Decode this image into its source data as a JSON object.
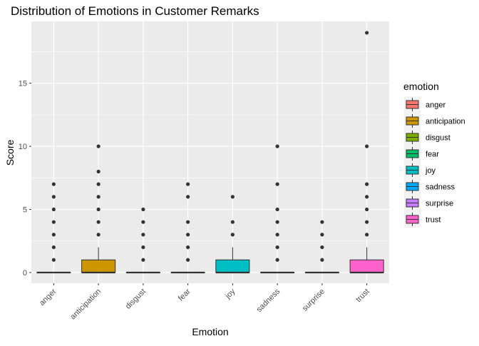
{
  "chart_data": {
    "type": "boxplot",
    "title": "Distribution of Emotions in Customer Remarks",
    "xlabel": "Emotion",
    "ylabel": "Score",
    "ylim": [
      -0.85,
      19.9
    ],
    "yticks": [
      0,
      5,
      10,
      15
    ],
    "grid": true,
    "legend": {
      "title": "emotion",
      "position": "right"
    },
    "categories": [
      "anger",
      "anticipation",
      "disgust",
      "fear",
      "joy",
      "sadness",
      "surprise",
      "trust"
    ],
    "colors": {
      "anger": "#F8766D",
      "anticipation": "#CD9600",
      "disgust": "#7CAE00",
      "fear": "#00BE67",
      "joy": "#00BFC4",
      "sadness": "#00A9FF",
      "surprise": "#C77CFF",
      "trust": "#FF61CC"
    },
    "boxes": [
      {
        "emotion": "anger",
        "q1": 0,
        "median": 0,
        "q3": 0,
        "whisker_low": 0,
        "whisker_high": 0,
        "outliers": [
          1,
          2,
          3,
          4,
          5,
          6,
          7
        ]
      },
      {
        "emotion": "anticipation",
        "q1": 0,
        "median": 0,
        "q3": 1,
        "whisker_low": 0,
        "whisker_high": 2,
        "outliers": [
          3,
          4,
          5,
          6,
          7,
          8,
          10
        ]
      },
      {
        "emotion": "disgust",
        "q1": 0,
        "median": 0,
        "q3": 0,
        "whisker_low": 0,
        "whisker_high": 0,
        "outliers": [
          1,
          2,
          3,
          4,
          5
        ]
      },
      {
        "emotion": "fear",
        "q1": 0,
        "median": 0,
        "q3": 0,
        "whisker_low": 0,
        "whisker_high": 0,
        "outliers": [
          1,
          2,
          3,
          4,
          6,
          7
        ]
      },
      {
        "emotion": "joy",
        "q1": 0,
        "median": 0,
        "q3": 1,
        "whisker_low": 0,
        "whisker_high": 2,
        "outliers": [
          3,
          4,
          6
        ]
      },
      {
        "emotion": "sadness",
        "q1": 0,
        "median": 0,
        "q3": 0,
        "whisker_low": 0,
        "whisker_high": 0,
        "outliers": [
          1,
          2,
          3,
          4,
          5,
          7,
          10
        ]
      },
      {
        "emotion": "surprise",
        "q1": 0,
        "median": 0,
        "q3": 0,
        "whisker_low": 0,
        "whisker_high": 0,
        "outliers": [
          1,
          2,
          3,
          4
        ]
      },
      {
        "emotion": "trust",
        "q1": 0,
        "median": 0,
        "q3": 1,
        "whisker_low": 0,
        "whisker_high": 2,
        "outliers": [
          3,
          4,
          5,
          6,
          7,
          10,
          19
        ]
      }
    ]
  }
}
